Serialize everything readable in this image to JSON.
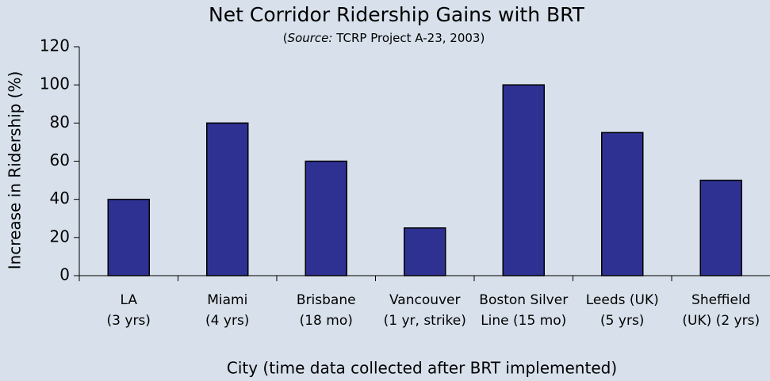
{
  "chart_data": {
    "type": "bar",
    "title": "Net Corridor Ridership Gains with BRT",
    "subtitle": [
      "(",
      "Source:",
      " TCRP Project A-23, 2003)"
    ],
    "x_label": "City (time data collected after BRT implemented)",
    "y_label": "Increase in Ridership (%)",
    "categories": [
      [
        "LA",
        "(3 yrs)"
      ],
      [
        "Miami",
        "(4 yrs)"
      ],
      [
        "Brisbane",
        "(18 mo)"
      ],
      [
        "Vancouver",
        "(1 yr, strike)"
      ],
      [
        "Boston Silver",
        "Line (15 mo)"
      ],
      [
        "Leeds (UK)",
        "(5 yrs)"
      ],
      [
        "Sheffield",
        "(UK) (2 yrs)"
      ]
    ],
    "values": [
      40,
      80,
      60,
      25,
      100,
      75,
      50
    ],
    "color": "#2e3192",
    "ylim": [
      0,
      120
    ],
    "yticks": [
      0,
      20,
      40,
      60,
      80,
      100,
      120
    ],
    "grid": false
  }
}
